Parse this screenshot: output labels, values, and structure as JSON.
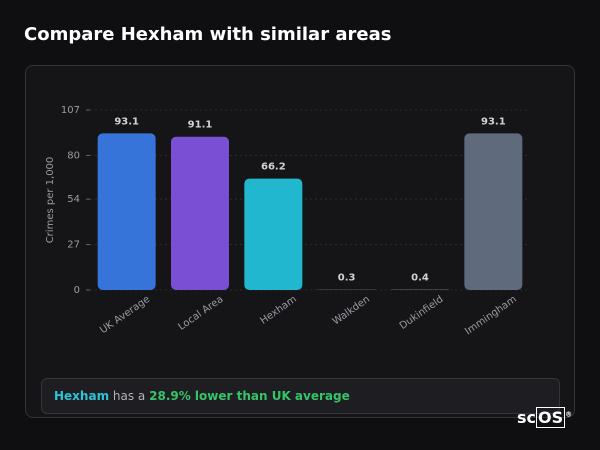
{
  "header": {
    "title": "Compare Hexham with similar areas"
  },
  "chart_data": {
    "type": "bar",
    "y_label": "Crimes per 1,000",
    "categories": [
      "UK Average",
      "Local Area",
      "Hexham",
      "Walkden",
      "Dukinfield",
      "Immingham"
    ],
    "values": [
      93.1,
      91.1,
      66.2,
      0.3,
      0.4,
      93.1
    ],
    "colors": [
      "#3674d9",
      "#7b4fd4",
      "#21b8cf",
      "#55575c",
      "#55575c",
      "#5f6b7d"
    ],
    "ylim": [
      0,
      107
    ],
    "yticks": [
      0,
      27,
      54,
      80,
      107
    ],
    "grid": true
  },
  "summary": {
    "area": "Hexham",
    "text": "has a",
    "comparison": "28.9% lower than UK average"
  },
  "logo": {
    "prefix": "sc",
    "box": "OS",
    "mark": "®"
  }
}
